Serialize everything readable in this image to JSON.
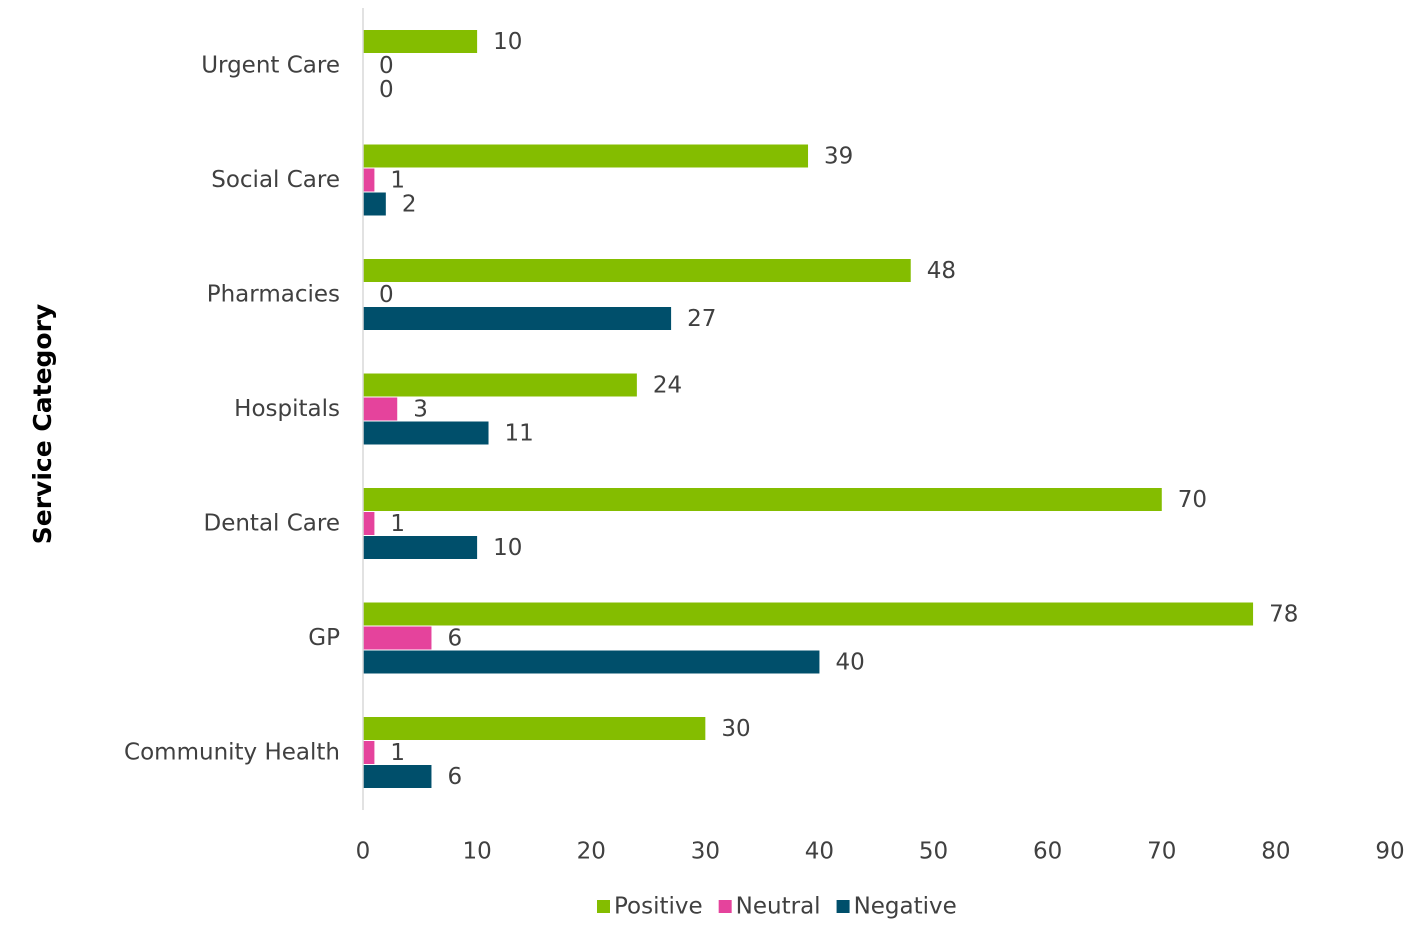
{
  "chart_data": {
    "type": "bar",
    "orientation": "horizontal",
    "ylabel": "Service Category",
    "xlim": [
      0,
      90
    ],
    "x_ticks": [
      0,
      10,
      20,
      30,
      40,
      50,
      60,
      70,
      80,
      90
    ],
    "categories": [
      "Urgent Care",
      "Social Care",
      "Pharmacies",
      "Hospitals",
      "Dental Care",
      "GP",
      "Community Health"
    ],
    "series": [
      {
        "name": "Positive",
        "color": "#84BD00",
        "values": [
          10,
          39,
          48,
          24,
          70,
          78,
          30
        ]
      },
      {
        "name": "Neutral",
        "color": "#E5439C",
        "values": [
          0,
          1,
          0,
          3,
          1,
          6,
          1
        ]
      },
      {
        "name": "Negative",
        "color": "#004F6B",
        "values": [
          0,
          2,
          27,
          11,
          10,
          40,
          6
        ]
      }
    ],
    "data_labels": true,
    "grid": false,
    "legend_position": "bottom"
  }
}
